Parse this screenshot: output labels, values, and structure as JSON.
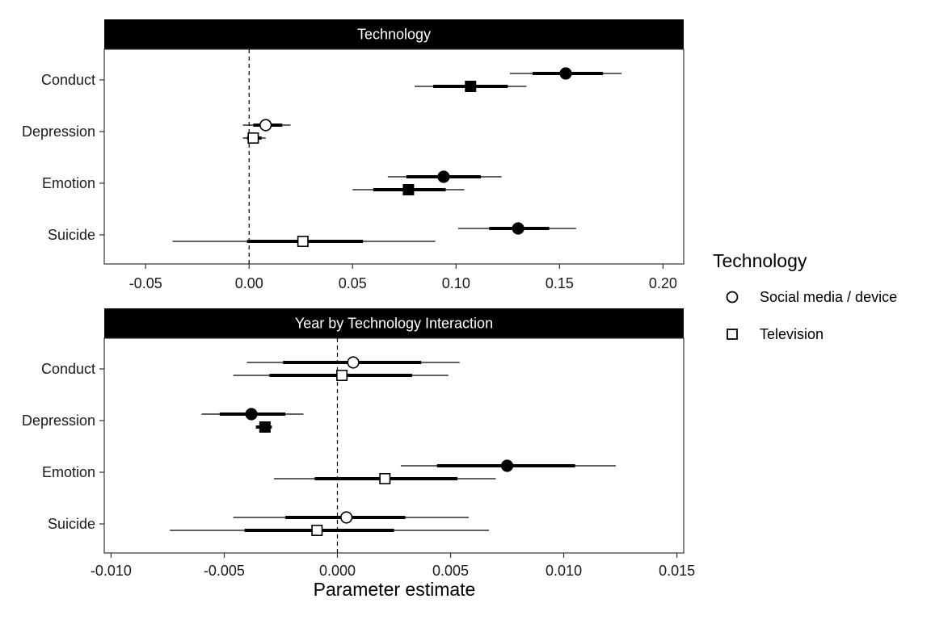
{
  "chart_data": [
    {
      "type": "forest",
      "title": "Technology",
      "xlim": [
        -0.07,
        0.21
      ],
      "xticks": [
        -0.05,
        0.0,
        0.05,
        0.1,
        0.15,
        0.2
      ],
      "xtick_labels": [
        "-0.05",
        "0.00",
        "0.05",
        "0.10",
        "0.15",
        "0.20"
      ],
      "categories": [
        "Conduct",
        "Depression",
        "Emotion",
        "Suicide"
      ],
      "reference_line": 0,
      "series": [
        {
          "name": "Social media / device",
          "marker": "circle",
          "points": [
            {
              "category": "Conduct",
              "estimate": 0.153,
              "inner": [
                0.137,
                0.171
              ],
              "outer": [
                0.126,
                0.18
              ],
              "filled": true
            },
            {
              "category": "Depression",
              "estimate": 0.008,
              "inner": [
                0.002,
                0.016
              ],
              "outer": [
                -0.003,
                0.02
              ],
              "filled": false
            },
            {
              "category": "Emotion",
              "estimate": 0.094,
              "inner": [
                0.076,
                0.112
              ],
              "outer": [
                0.067,
                0.122
              ],
              "filled": true
            },
            {
              "category": "Suicide",
              "estimate": 0.13,
              "inner": [
                0.116,
                0.145
              ],
              "outer": [
                0.101,
                0.158
              ],
              "filled": true
            }
          ]
        },
        {
          "name": "Television",
          "marker": "square",
          "points": [
            {
              "category": "Conduct",
              "estimate": 0.107,
              "inner": [
                0.089,
                0.125
              ],
              "outer": [
                0.08,
                0.134
              ],
              "filled": true
            },
            {
              "category": "Depression",
              "estimate": 0.002,
              "inner": [
                -0.001,
                0.006
              ],
              "outer": [
                -0.003,
                0.008
              ],
              "filled": false
            },
            {
              "category": "Emotion",
              "estimate": 0.077,
              "inner": [
                0.06,
                0.095
              ],
              "outer": [
                0.05,
                0.104
              ],
              "filled": true
            },
            {
              "category": "Suicide",
              "estimate": 0.026,
              "inner": [
                -0.001,
                0.055
              ],
              "outer": [
                -0.037,
                0.09
              ],
              "filled": false
            }
          ]
        }
      ]
    },
    {
      "type": "forest",
      "title": "Year by Technology Interaction",
      "xlim": [
        -0.0103,
        0.0153
      ],
      "xticks": [
        -0.01,
        -0.005,
        0.0,
        0.005,
        0.01,
        0.015
      ],
      "xtick_labels": [
        "-0.010",
        "-0.005",
        "0.000",
        "0.005",
        "0.010",
        "0.015"
      ],
      "categories": [
        "Conduct",
        "Depression",
        "Emotion",
        "Suicide"
      ],
      "reference_line": 0,
      "series": [
        {
          "name": "Social media / device",
          "marker": "circle",
          "points": [
            {
              "category": "Conduct",
              "estimate": 0.0007,
              "inner": [
                -0.0024,
                0.0037
              ],
              "outer": [
                -0.004,
                0.0054
              ],
              "filled": false
            },
            {
              "category": "Depression",
              "estimate": -0.0038,
              "inner": [
                -0.0052,
                -0.0023
              ],
              "outer": [
                -0.006,
                -0.0015
              ],
              "filled": true
            },
            {
              "category": "Emotion",
              "estimate": 0.0075,
              "inner": [
                0.0044,
                0.0105
              ],
              "outer": [
                0.0028,
                0.0123
              ],
              "filled": true
            },
            {
              "category": "Suicide",
              "estimate": 0.0004,
              "inner": [
                -0.0023,
                0.003
              ],
              "outer": [
                -0.0046,
                0.0058
              ],
              "filled": false
            }
          ]
        },
        {
          "name": "Television",
          "marker": "square",
          "points": [
            {
              "category": "Conduct",
              "estimate": 0.0002,
              "inner": [
                -0.003,
                0.0033
              ],
              "outer": [
                -0.0046,
                0.0049
              ],
              "filled": false
            },
            {
              "category": "Depression",
              "estimate": -0.0032,
              "inner": [
                -0.0036,
                -0.0029
              ],
              "outer": [
                -0.0036,
                -0.0029
              ],
              "filled": true
            },
            {
              "category": "Emotion",
              "estimate": 0.0021,
              "inner": [
                -0.001,
                0.0053
              ],
              "outer": [
                -0.0028,
                0.007
              ],
              "filled": false
            },
            {
              "category": "Suicide",
              "estimate": -0.0009,
              "inner": [
                -0.0041,
                0.0025
              ],
              "outer": [
                -0.0074,
                0.0067
              ],
              "filled": false
            }
          ]
        }
      ]
    }
  ],
  "xlabel": "Parameter estimate",
  "legend": {
    "title": "Technology",
    "position": "right",
    "items": [
      {
        "label": "Social media / device",
        "marker": "circle"
      },
      {
        "label": "Television",
        "marker": "square"
      }
    ]
  }
}
